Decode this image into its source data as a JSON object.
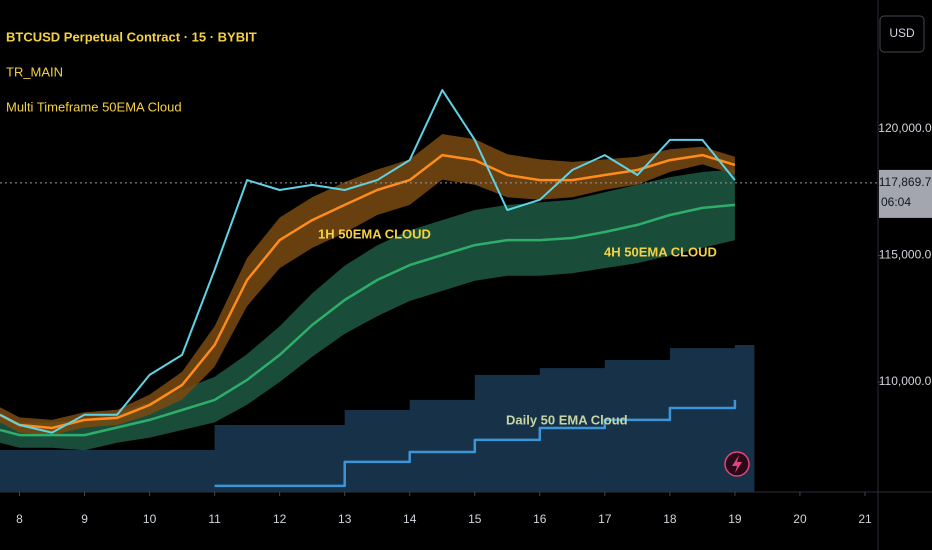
{
  "chart_data": {
    "type": "line",
    "title": "BTCUSD Perpetual Contract · 15 · BYBIT",
    "indicators": [
      "TR_MAIN",
      "Multi Timeframe 50EMA Cloud"
    ],
    "annotations": [
      "1H 50EMA CLOUD",
      "4H 50EMA CLOUD",
      "Daily 50 EMA Cloud"
    ],
    "y_axis_unit": "USD",
    "last_price": {
      "value": 117869.7,
      "label": "117,869.7"
    },
    "countdown": "06:04",
    "x": [
      7.7,
      8,
      8.5,
      9,
      9.5,
      10,
      10.5,
      11,
      11.5,
      12,
      12.5,
      13,
      13.5,
      14,
      14.5,
      15,
      15.5,
      16,
      16.5,
      17,
      17.5,
      18,
      18.5,
      19
    ],
    "xlim": [
      7.7,
      21.2
    ],
    "xticks": [
      8,
      9,
      10,
      11,
      12,
      13,
      14,
      15,
      16,
      17,
      18,
      19,
      20,
      21
    ],
    "ylim": [
      105650,
      125100
    ],
    "yticks": [
      {
        "value": 110000,
        "label": "110,000.0"
      },
      {
        "value": 115000,
        "label": "115,000.0"
      },
      {
        "value": 120000,
        "label": "120,000.0"
      }
    ],
    "bands": [
      {
        "color": "#1b3a55",
        "step": true,
        "high": [
          107310,
          107310,
          107310,
          107310,
          107310,
          107310,
          107310,
          108300,
          108300,
          108300,
          108300,
          108890,
          108890,
          109290,
          109290,
          110280,
          110280,
          110550,
          110550,
          110870,
          110870,
          111340,
          111340,
          111460
        ],
        "low": [
          105650,
          105650,
          105650,
          105650,
          105650,
          105650,
          105650,
          105650,
          105650,
          105650,
          105650,
          105650,
          105650,
          105650,
          105650,
          105650,
          105650,
          105650,
          105650,
          105650,
          105650,
          105650,
          105650,
          105650
        ]
      },
      {
        "color": "#1d5a44",
        "step": false,
        "high": [
          108600,
          108400,
          108400,
          108500,
          108800,
          109200,
          109700,
          110200,
          111100,
          112200,
          113500,
          114600,
          115400,
          116000,
          116400,
          116800,
          117000,
          117100,
          117200,
          117500,
          117800,
          118100,
          118300,
          118400
        ],
        "low": [
          107600,
          107400,
          107400,
          107300,
          107600,
          107800,
          108100,
          108400,
          109100,
          110000,
          111000,
          111900,
          112600,
          113200,
          113600,
          114000,
          114200,
          114200,
          114300,
          114500,
          114700,
          115000,
          115300,
          115600
        ]
      },
      {
        "color": "#7a4a12",
        "step": false,
        "high": [
          109000,
          108600,
          108500,
          108800,
          108900,
          109500,
          110400,
          112200,
          114900,
          116500,
          117300,
          117900,
          118400,
          118800,
          119800,
          119600,
          119000,
          118800,
          118700,
          118800,
          118900,
          119200,
          119300,
          118900
        ],
        "low": [
          108400,
          108000,
          107900,
          108200,
          108300,
          108700,
          109300,
          110600,
          113000,
          114500,
          115300,
          115900,
          116600,
          117000,
          118000,
          117800,
          117300,
          117200,
          117300,
          117600,
          117800,
          118300,
          118600,
          118200
        ]
      }
    ],
    "series": [
      {
        "color": "#3d95d8",
        "step": true,
        "values": [
          null,
          null,
          null,
          null,
          null,
          null,
          null,
          105890,
          105890,
          105890,
          105890,
          106840,
          106840,
          107230,
          107230,
          107710,
          107710,
          108180,
          108180,
          108500,
          108500,
          108970,
          108970,
          109290
        ]
      },
      {
        "color": "#2eae6a",
        "step": false,
        "values": [
          108100,
          107900,
          107900,
          107900,
          108200,
          108500,
          108890,
          109290,
          110080,
          111070,
          112250,
          113240,
          114030,
          114620,
          115020,
          115410,
          115610,
          115610,
          115690,
          115930,
          116210,
          116600,
          116880,
          117000
        ]
      },
      {
        "color": "#ff8c1a",
        "step": false,
        "values": [
          108700,
          108300,
          108180,
          108500,
          108580,
          109090,
          109880,
          111460,
          114030,
          115610,
          116400,
          117000,
          117590,
          117980,
          118970,
          118770,
          118180,
          117980,
          117980,
          118180,
          118380,
          118770,
          118970,
          118580
        ]
      },
      {
        "color": "#5fd3e6",
        "step": false,
        "values": [
          108700,
          108300,
          108000,
          108700,
          108700,
          110280,
          111070,
          114430,
          117980,
          117590,
          117790,
          117590,
          117980,
          118770,
          121540,
          119570,
          116800,
          117200,
          118380,
          118970,
          118180,
          119570,
          119570,
          117980
        ]
      }
    ]
  }
}
